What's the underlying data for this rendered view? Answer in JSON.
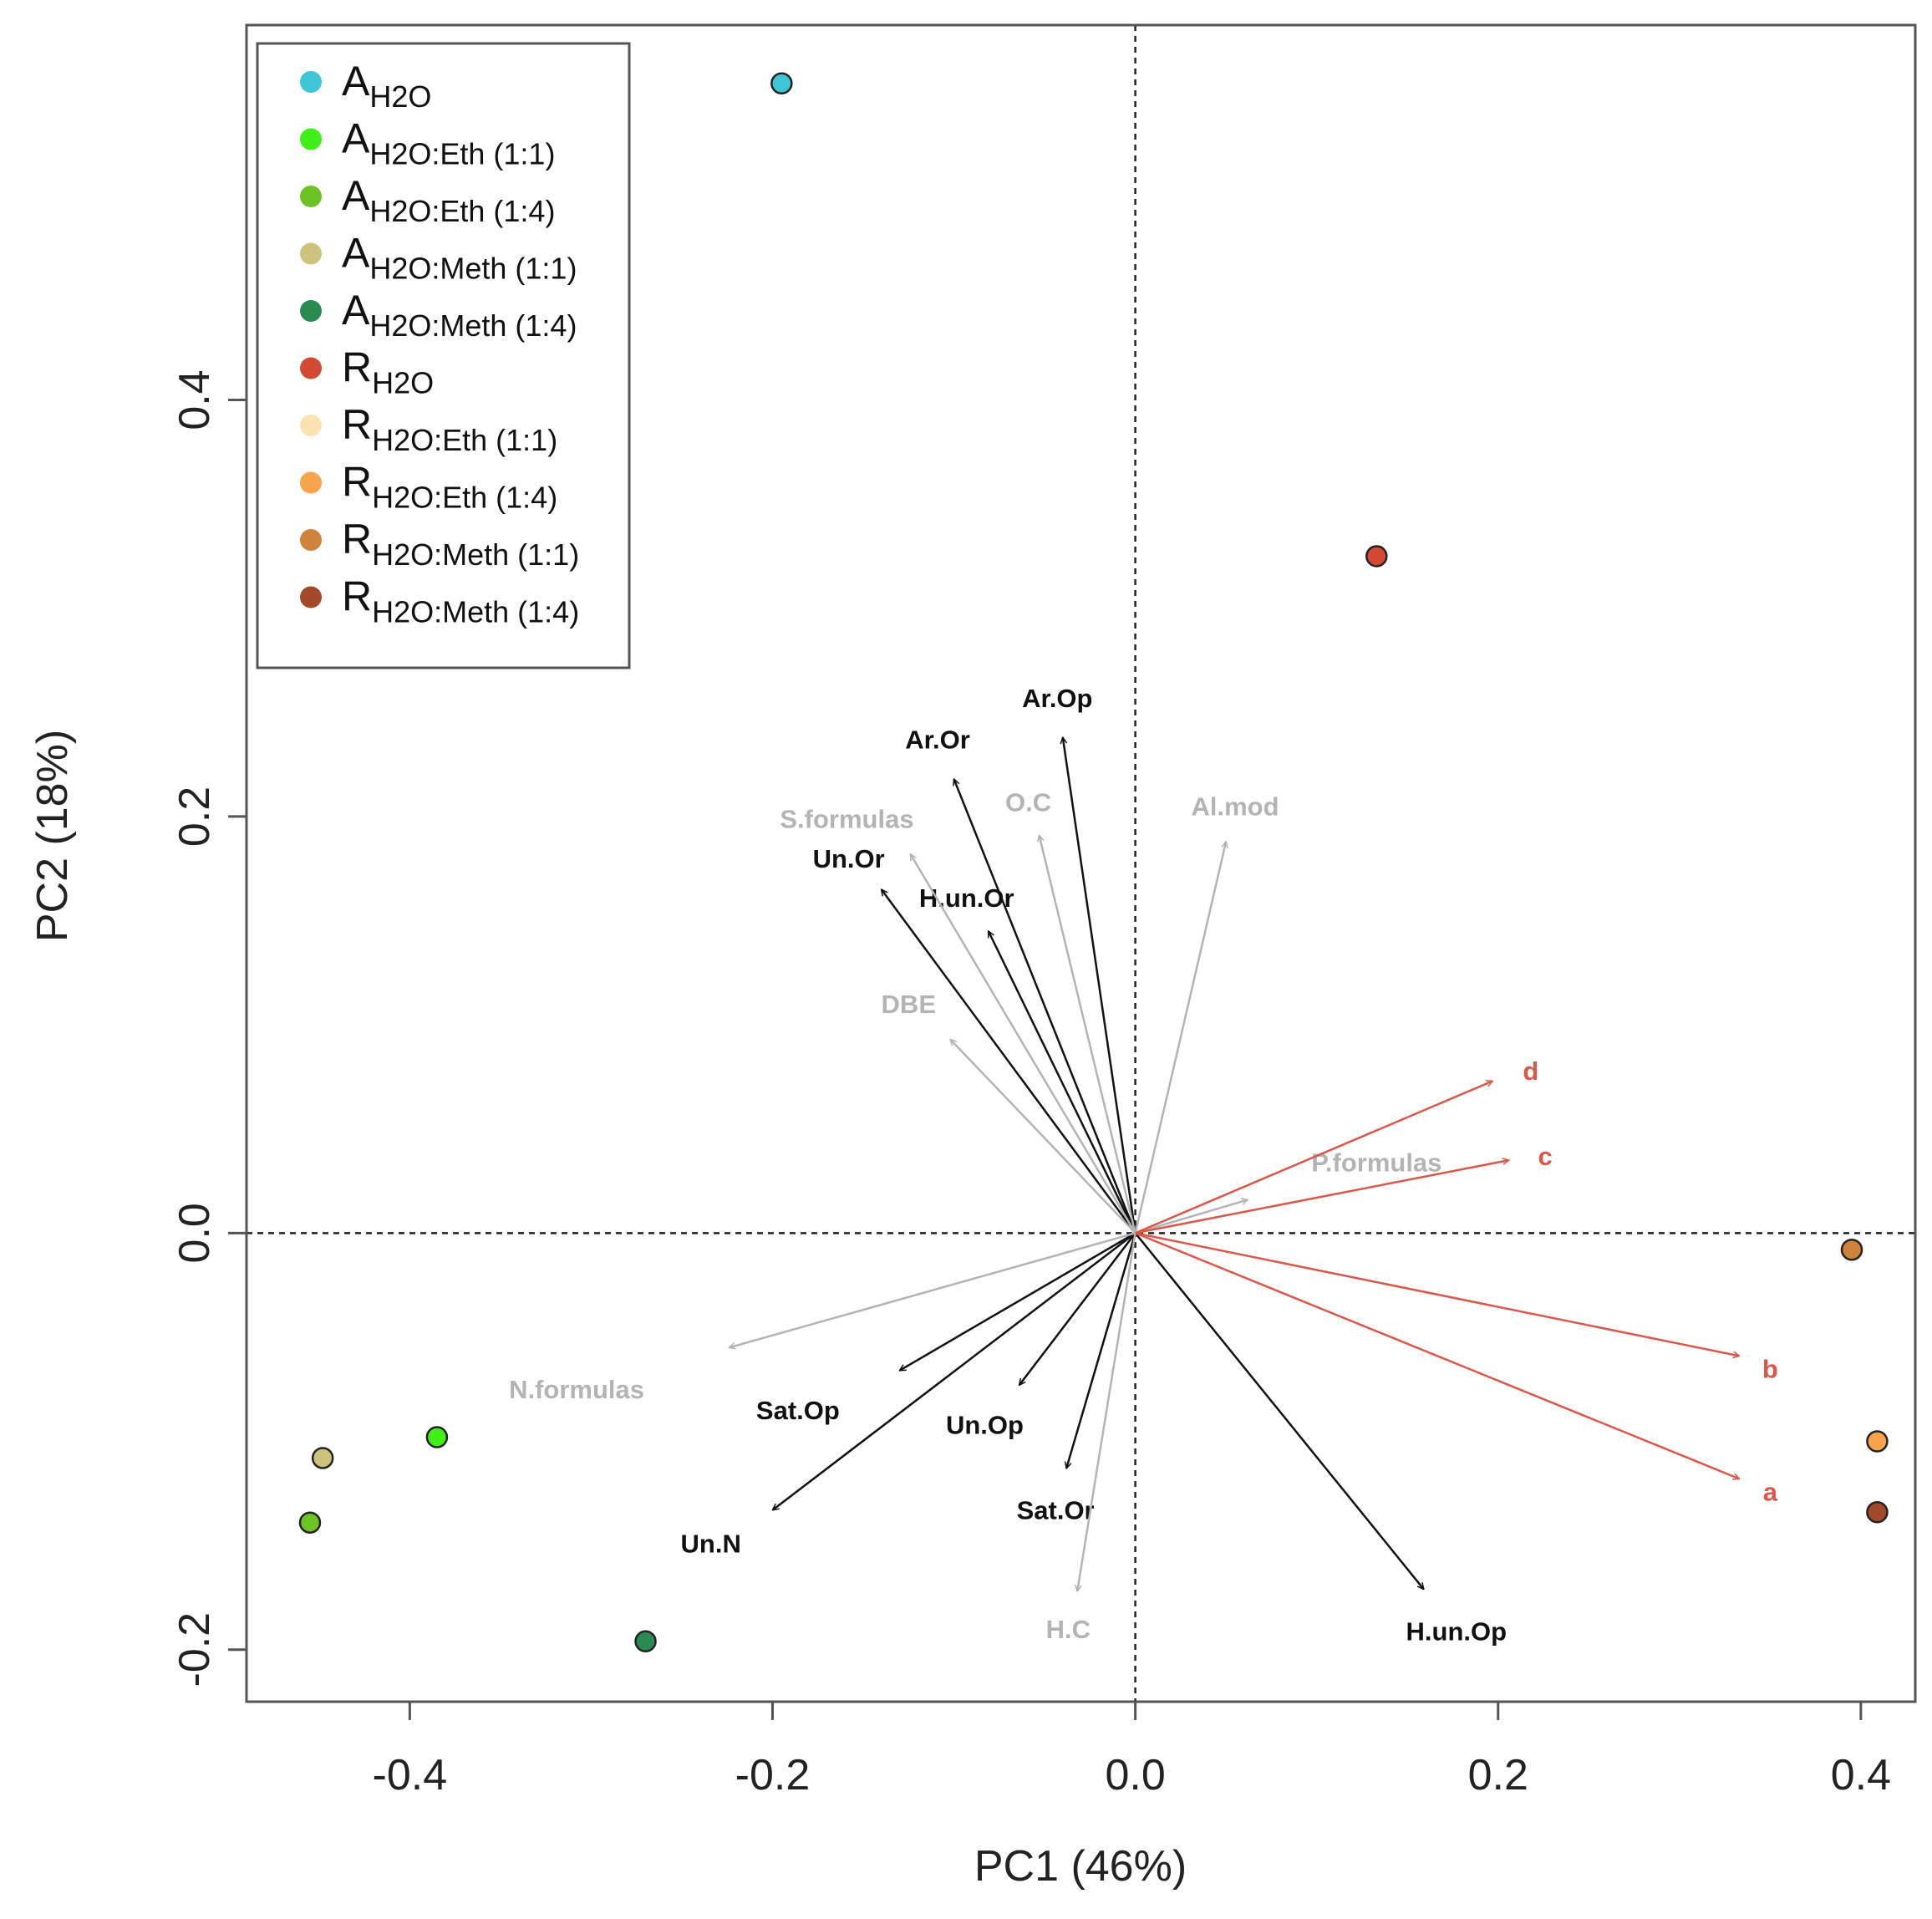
{
  "chart_data": {
    "type": "scatter",
    "title": "",
    "xlabel": "PC1 (46%)",
    "ylabel": "PC2 (18%)",
    "xlim": [
      -0.49,
      0.43
    ],
    "ylim": [
      -0.225,
      0.58
    ],
    "xticks": [
      {
        "value": -0.4,
        "label": "-0.4"
      },
      {
        "value": -0.2,
        "label": "-0.2"
      },
      {
        "value": 0.0,
        "label": "0.0"
      },
      {
        "value": 0.2,
        "label": "0.2"
      },
      {
        "value": 0.4,
        "label": "0.4"
      }
    ],
    "yticks": [
      {
        "value": -0.2,
        "label": "-0.2"
      },
      {
        "value": 0.0,
        "label": "0.0"
      },
      {
        "value": 0.2,
        "label": "0.2"
      },
      {
        "value": 0.4,
        "label": "0.4"
      }
    ],
    "reference_lines": {
      "x": 0,
      "y": 0,
      "style": "dashed"
    },
    "legend": {
      "position": "top-left",
      "entries": [
        {
          "id": "a-h2o",
          "main": "A",
          "sub": "H2O",
          "color": "#3ec6d6"
        },
        {
          "id": "a-eth-11",
          "main": "A",
          "sub": "H2O:Eth (1:1)",
          "color": "#40f018"
        },
        {
          "id": "a-eth-14",
          "main": "A",
          "sub": "H2O:Eth (1:4)",
          "color": "#6cc424"
        },
        {
          "id": "a-meth-11",
          "main": "A",
          "sub": "H2O:Meth (1:1)",
          "color": "#cdc27e"
        },
        {
          "id": "a-meth-14",
          "main": "A",
          "sub": "H2O:Meth (1:4)",
          "color": "#2a8a50"
        },
        {
          "id": "r-h2o",
          "main": "R",
          "sub": "H2O",
          "color": "#d24a34"
        },
        {
          "id": "r-eth-11",
          "main": "R",
          "sub": "H2O:Eth (1:1)",
          "color": "#fde2b4"
        },
        {
          "id": "r-eth-14",
          "main": "R",
          "sub": "H2O:Eth (1:4)",
          "color": "#f8a44c"
        },
        {
          "id": "r-meth-11",
          "main": "R",
          "sub": "H2O:Meth (1:1)",
          "color": "#d0823a"
        },
        {
          "id": "r-meth-14",
          "main": "R",
          "sub": "H2O:Meth (1:4)",
          "color": "#a4482a"
        }
      ]
    },
    "points": [
      {
        "series": "a-h2o",
        "x": -0.195,
        "y": 0.552
      },
      {
        "series": "a-eth-11",
        "x": -0.385,
        "y": -0.098
      },
      {
        "series": "a-eth-14",
        "x": -0.455,
        "y": -0.139
      },
      {
        "series": "a-meth-11",
        "x": -0.448,
        "y": -0.108
      },
      {
        "series": "a-meth-14",
        "x": -0.27,
        "y": -0.196
      },
      {
        "series": "r-h2o",
        "x": 0.133,
        "y": 0.325
      },
      {
        "series": "r-eth-14",
        "x": 0.409,
        "y": -0.1
      },
      {
        "series": "r-meth-11",
        "x": 0.395,
        "y": -0.008
      },
      {
        "series": "r-meth-14",
        "x": 0.409,
        "y": -0.134
      }
    ],
    "vectors": [
      {
        "label": "Ar.Op",
        "x": -0.04,
        "y": 0.238,
        "color": "#111111",
        "lx": -0.043,
        "ly": 0.257
      },
      {
        "label": "Ar.Or",
        "x": -0.1,
        "y": 0.218,
        "color": "#111111",
        "lx": -0.109,
        "ly": 0.237
      },
      {
        "label": "Un.Or",
        "x": -0.14,
        "y": 0.165,
        "color": "#111111",
        "lx": -0.158,
        "ly": 0.18
      },
      {
        "label": "H.un.Or",
        "x": -0.081,
        "y": 0.145,
        "color": "#111111",
        "lx": -0.093,
        "ly": 0.161
      },
      {
        "label": "Sat.Op",
        "x": -0.13,
        "y": -0.066,
        "color": "#111111",
        "lx": -0.186,
        "ly": -0.085
      },
      {
        "label": "Un.Op",
        "x": -0.064,
        "y": -0.073,
        "color": "#111111",
        "lx": -0.083,
        "ly": -0.092
      },
      {
        "label": "Un.N",
        "x": -0.2,
        "y": -0.133,
        "color": "#111111",
        "lx": -0.234,
        "ly": -0.149
      },
      {
        "label": "Sat.Or",
        "x": -0.038,
        "y": -0.113,
        "color": "#111111",
        "lx": -0.044,
        "ly": -0.133
      },
      {
        "label": "H.un.Op",
        "x": 0.159,
        "y": -0.171,
        "color": "#111111",
        "lx": 0.177,
        "ly": -0.191
      },
      {
        "label": "S.formulas",
        "x": -0.124,
        "y": 0.182,
        "color": "#b4b4b4",
        "lx": -0.159,
        "ly": 0.199
      },
      {
        "label": "O.C",
        "x": -0.053,
        "y": 0.191,
        "color": "#b4b4b4",
        "lx": -0.059,
        "ly": 0.207
      },
      {
        "label": "Al.mod",
        "x": 0.05,
        "y": 0.188,
        "color": "#b4b4b4",
        "lx": 0.055,
        "ly": 0.205
      },
      {
        "label": "DBE",
        "x": -0.102,
        "y": 0.093,
        "color": "#b4b4b4",
        "lx": -0.125,
        "ly": 0.11
      },
      {
        "label": "P.formulas",
        "x": 0.062,
        "y": 0.016,
        "color": "#b4b4b4",
        "lx": 0.133,
        "ly": 0.034
      },
      {
        "label": "N.formulas",
        "x": -0.224,
        "y": -0.055,
        "color": "#b4b4b4",
        "lx": -0.308,
        "ly": -0.075
      },
      {
        "label": "H.C",
        "x": -0.032,
        "y": -0.172,
        "color": "#b4b4b4",
        "lx": -0.037,
        "ly": -0.19
      },
      {
        "label": "d",
        "x": 0.197,
        "y": 0.073,
        "color": "#d9584a",
        "lx": 0.218,
        "ly": 0.078
      },
      {
        "label": "c",
        "x": 0.206,
        "y": 0.035,
        "color": "#d9584a",
        "lx": 0.226,
        "ly": 0.037
      },
      {
        "label": "b",
        "x": 0.333,
        "y": -0.059,
        "color": "#d9584a",
        "lx": 0.35,
        "ly": -0.065
      },
      {
        "label": "a",
        "x": 0.333,
        "y": -0.118,
        "color": "#d9584a",
        "lx": 0.35,
        "ly": -0.124
      }
    ]
  }
}
